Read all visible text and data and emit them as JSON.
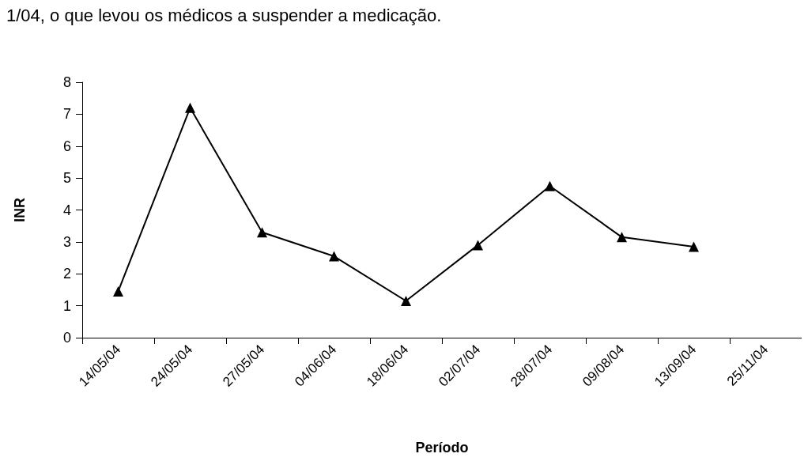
{
  "chart_data": {
    "type": "line",
    "annotations": [
      "1/04, o que levou os médicos a suspender a medicação."
    ],
    "xlabel": "Período",
    "ylabel": "INR",
    "categories": [
      "14/05/04",
      "24/05/04",
      "27/05/04",
      "04/06/04",
      "18/06/04",
      "02/07/04",
      "28/07/04",
      "09/08/04",
      "13/09/04",
      "25/11/04"
    ],
    "series": [
      {
        "color": "#000000",
        "values": [
          1.45,
          7.2,
          3.3,
          2.55,
          1.15,
          2.9,
          4.75,
          3.15,
          2.85,
          null
        ]
      }
    ],
    "ylim": [
      0,
      8
    ],
    "yticks": [
      0,
      1,
      2,
      3,
      4,
      5,
      6,
      7,
      8
    ],
    "grid": false,
    "marker": "triangle",
    "line_style": "solid"
  }
}
